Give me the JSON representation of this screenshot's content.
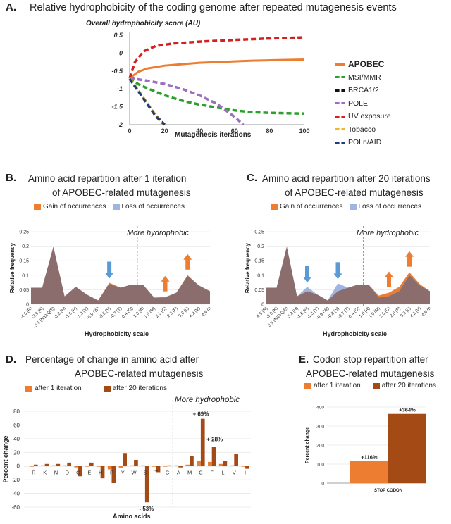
{
  "panelA": {
    "letter": "A.",
    "title": "Relative hydrophobicity of the coding genome after repeated mutagenesis events",
    "ylabel": "Overall hydrophobicity score (AU)",
    "xlabel": "Mutagenesis iterations",
    "yticks": [
      "0.5",
      "0",
      "-0.5",
      "-1",
      "-1.5",
      "-2"
    ],
    "xticks": [
      "0",
      "20",
      "40",
      "60",
      "80",
      "100"
    ],
    "legend": [
      {
        "name": "APOBEC",
        "color": "#ED7D31",
        "dashed": false,
        "bold": true
      },
      {
        "name": "MSI/MMR",
        "color": "#2CA02C",
        "dashed": true,
        "bold": false
      },
      {
        "name": "BRCA1/2",
        "color": "#111111",
        "dashed": true,
        "bold": false
      },
      {
        "name": "POLE",
        "color": "#A06CC0",
        "dashed": true,
        "bold": false
      },
      {
        "name": "UV exposure",
        "color": "#D42020",
        "dashed": true,
        "bold": false
      },
      {
        "name": "Tobacco",
        "color": "#F2B81E",
        "dashed": true,
        "bold": false
      },
      {
        "name": "POLn/AID",
        "color": "#1F3E78",
        "dashed": true,
        "bold": false
      }
    ]
  },
  "panelB": {
    "letter": "B.",
    "title_line1": "Amino acid repartition after 1 iteration",
    "title_line2": "of APOBEC-related mutagenesis",
    "legend_gain": "Gain of occurrences",
    "legend_loss": "Loss of occurrences",
    "annotation": "More hydrophobic",
    "ylabel": "Relative frequency",
    "xlabel": "Hydrophobicity scale"
  },
  "panelC": {
    "letter": "C.",
    "title_line1": "Amino acid repartition after 20 iterations",
    "title_line2": "of APOBEC-related mutagenesis",
    "legend_gain": "Gain of occurrences",
    "legend_loss": "Loss of occurrences",
    "annotation": "More hydrophobic",
    "ylabel": "Relative frequency",
    "xlabel": "Hydrophobicity scale"
  },
  "panelD": {
    "letter": "D.",
    "title_line1": "Percentage of change in amino acid after",
    "title_line2": "APOBEC-related mutagenesis",
    "legend1": "after 1 iteration",
    "legend2": "after 20 iterations",
    "annotation": "More hydrophobic",
    "ylabel": "Percent change",
    "xlabel": "Amino acids",
    "yticks": [
      "80",
      "60",
      "40",
      "20",
      "0",
      "-20",
      "-40",
      "-60"
    ]
  },
  "panelE": {
    "letter": "E.",
    "title_line1": "Codon stop repartition after",
    "title_line2": "APOBEC-related mutagenesis",
    "legend1": "after 1 iteration",
    "legend2": "after 20 iterations",
    "ylabel": "Percent change",
    "yticks": [
      "400",
      "300",
      "200",
      "100",
      "0"
    ]
  },
  "chart_data": [
    {
      "type": "line",
      "title": "Relative hydrophobicity of the coding genome after repeated mutagenesis events",
      "xlabel": "Mutagenesis iterations",
      "ylabel": "Overall hydrophobicity score (AU)",
      "xlim": [
        0,
        100
      ],
      "ylim": [
        -2,
        0.5
      ],
      "series": [
        {
          "name": "APOBEC",
          "color": "#ED7D31",
          "x": [
            0,
            5,
            10,
            20,
            30,
            40,
            50,
            60,
            70,
            80,
            90,
            100
          ],
          "y": [
            -0.7,
            -0.52,
            -0.43,
            -0.35,
            -0.31,
            -0.27,
            -0.25,
            -0.23,
            -0.21,
            -0.2,
            -0.19,
            -0.18
          ]
        },
        {
          "name": "MSI/MMR",
          "color": "#2CA02C",
          "x": [
            0,
            5,
            10,
            20,
            30,
            40,
            50,
            60,
            70,
            80,
            90,
            100
          ],
          "y": [
            -0.7,
            -0.87,
            -0.98,
            -1.18,
            -1.33,
            -1.44,
            -1.52,
            -1.6,
            -1.65,
            -1.67,
            -1.68,
            -1.69
          ]
        },
        {
          "name": "BRCA1/2",
          "color": "#111111",
          "x": [
            0,
            5,
            10,
            15,
            20
          ],
          "y": [
            -0.7,
            -1.05,
            -1.4,
            -1.75,
            -2
          ]
        },
        {
          "name": "POLE",
          "color": "#A06CC0",
          "x": [
            0,
            10,
            20,
            30,
            40,
            50,
            60,
            65
          ],
          "y": [
            -0.7,
            -0.77,
            -0.86,
            -1.0,
            -1.18,
            -1.42,
            -1.78,
            -2
          ]
        },
        {
          "name": "UV exposure",
          "color": "#D42020",
          "x": [
            0,
            3,
            8,
            15,
            25,
            40,
            60,
            80,
            100
          ],
          "y": [
            -0.7,
            -0.25,
            0.05,
            0.2,
            0.27,
            0.32,
            0.37,
            0.41,
            0.44
          ]
        },
        {
          "name": "Tobacco",
          "color": "#F2B81E",
          "x": [
            0,
            5,
            10,
            15,
            19
          ],
          "y": [
            -0.7,
            -1.05,
            -1.4,
            -1.75,
            -2
          ]
        },
        {
          "name": "POLn/AID",
          "color": "#1F3E78",
          "x": [
            0,
            5,
            10,
            15,
            20
          ],
          "y": [
            -0.72,
            -1.07,
            -1.42,
            -1.77,
            -2
          ]
        }
      ]
    },
    {
      "type": "area",
      "title": "Amino acid repartition after 1 iteration",
      "xlabel": "Hydrophobicity scale",
      "ylabel": "Relative frequency",
      "ylim": [
        0,
        0.25
      ],
      "yticks": [
        "0.25",
        "0.2",
        "0.15",
        "0.1",
        "0.05",
        "0"
      ],
      "categories": [
        "-4.5 (R)",
        "-3.9 (K)",
        "-3.5 (N/D/Q/E)",
        "-3.2 (H)",
        "-1.6 (P)",
        "-1.3 (Y)",
        "-0.9 (W)",
        "-0.8 (S)",
        "-0.7 (T)",
        "-0.4 (G)",
        "1.8 (A)",
        "1.9 (M)",
        "2.5 (C)",
        "2.8 (F)",
        "3.8 (L)",
        "4.2 (V)",
        "4.5 (I)"
      ],
      "series": [
        {
          "name": "Baseline",
          "values": [
            0.057,
            0.057,
            0.198,
            0.027,
            0.06,
            0.033,
            0.013,
            0.07,
            0.057,
            0.068,
            0.068,
            0.023,
            0.023,
            0.04,
            0.098,
            0.065,
            0.045
          ]
        },
        {
          "name": "After mutagenesis",
          "values": [
            0.057,
            0.057,
            0.198,
            0.027,
            0.06,
            0.033,
            0.013,
            0.074,
            0.057,
            0.068,
            0.068,
            0.023,
            0.025,
            0.04,
            0.1,
            0.065,
            0.045
          ]
        }
      ],
      "arrows": [
        {
          "category": "-0.8 (S)",
          "direction": "down",
          "kind": "loss"
        },
        {
          "category": "2.5 (C)",
          "direction": "up",
          "kind": "gain"
        },
        {
          "category": "3.8 (L)",
          "direction": "up",
          "kind": "gain"
        }
      ],
      "annotation": "More hydrophobic"
    },
    {
      "type": "area",
      "title": "Amino acid repartition after 20 iterations",
      "xlabel": "Hydrophobicity scale",
      "ylabel": "Relative frequency",
      "ylim": [
        0,
        0.25
      ],
      "yticks": [
        "0.25",
        "0.2",
        "0.15",
        "0.1",
        "0.05",
        "0"
      ],
      "categories": [
        "-4.5 (R)",
        "-3.9 (K)",
        "-3.5 (N/D/Q/E)",
        "-3.2 (H)",
        "-1.6 (P)",
        "-1.3 (Y)",
        "-0.9 (W)",
        "-0.8 (S)",
        "-0.7 (T)",
        "-0.4 (G)",
        "1.8 (A)",
        "1.9 (M)",
        "2.5 (C)",
        "2.8 (F)",
        "3.8 (L)",
        "4.2 (V)",
        "4.5 (I)"
      ],
      "series": [
        {
          "name": "Baseline",
          "values": [
            0.057,
            0.057,
            0.198,
            0.027,
            0.06,
            0.033,
            0.013,
            0.072,
            0.057,
            0.068,
            0.068,
            0.023,
            0.028,
            0.045,
            0.1,
            0.065,
            0.045
          ]
        },
        {
          "name": "After mutagenesis",
          "values": [
            0.057,
            0.057,
            0.198,
            0.027,
            0.045,
            0.033,
            0.013,
            0.045,
            0.057,
            0.068,
            0.068,
            0.03,
            0.04,
            0.06,
            0.11,
            0.07,
            0.045
          ]
        }
      ],
      "arrows": [
        {
          "category": "-1.6 (P)",
          "direction": "down",
          "kind": "loss"
        },
        {
          "category": "-0.8 (S)",
          "direction": "down",
          "kind": "loss"
        },
        {
          "category": "2.5 (C)",
          "direction": "up",
          "kind": "gain"
        },
        {
          "category": "3.8 (L)",
          "direction": "up",
          "kind": "gain"
        }
      ],
      "annotation": "More hydrophobic"
    },
    {
      "type": "bar",
      "title": "Percentage of change in amino acid after APOBEC-related mutagenesis",
      "xlabel": "Amino acids",
      "ylabel": "Percent change",
      "ylim": [
        -60,
        80
      ],
      "categories": [
        "R",
        "K",
        "N",
        "D",
        "Q",
        "E",
        "H",
        "P",
        "Y",
        "W",
        "S",
        "T",
        "G",
        "A",
        "M",
        "C",
        "F",
        "L",
        "V",
        "I"
      ],
      "series": [
        {
          "name": "after 1 iteration",
          "color": "#ED7D31",
          "values": [
            -1,
            1,
            1,
            1,
            -2,
            -1,
            -1,
            -5,
            -3,
            1,
            1,
            -1,
            -1,
            1,
            2,
            7,
            6,
            3,
            1,
            -1
          ]
        },
        {
          "name": "after 20 iterations",
          "color": "#A34A15",
          "values": [
            2,
            3,
            3,
            5,
            -15,
            5,
            -18,
            -25,
            19,
            9,
            -53,
            -9,
            1,
            -2,
            15,
            69,
            28,
            7,
            18,
            -4
          ]
        }
      ],
      "labels": [
        "+ 69%",
        "+ 28%",
        "- 53%"
      ],
      "annotation": "More hydrophobic"
    },
    {
      "type": "bar",
      "title": "Codon stop repartition after APOBEC-related mutagenesis",
      "ylabel": "Percent change",
      "ylim": [
        0,
        400
      ],
      "categories": [
        "STOP CODON"
      ],
      "series": [
        {
          "name": "after 1 iteration",
          "color": "#ED7D31",
          "values": [
            116
          ]
        },
        {
          "name": "after 20 iterations",
          "color": "#A34A15",
          "values": [
            364
          ]
        }
      ],
      "labels": [
        "+116%",
        "+364%"
      ]
    }
  ]
}
